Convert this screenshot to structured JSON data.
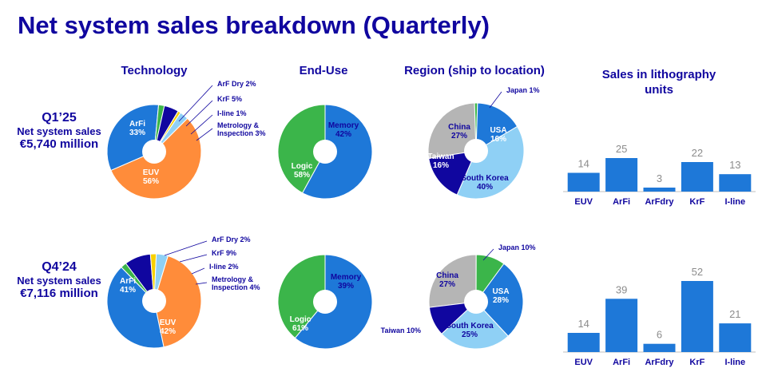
{
  "title": "Net system sales breakdown (Quarterly)",
  "headers": {
    "technology": "Technology",
    "end_use": "End-Use",
    "region": "Region (ship to location)",
    "litho_line1": "Sales in lithography",
    "litho_line2": "units"
  },
  "sections": [
    {
      "quarter": "Q1’25",
      "label": "Net system sales",
      "value": "€5,740 million"
    },
    {
      "quarter": "Q4’24",
      "label": "Net system sales",
      "value": "€7,116 million"
    }
  ],
  "colors": {
    "title": "#10069f",
    "dark_blue": "#10069f",
    "medium_blue": "#1e78d8",
    "light_blue": "#8fd0f5",
    "orange": "#ff8c3a",
    "green": "#3bb54a",
    "grey": "#b5b5b5",
    "yellow": "#f8d000",
    "label_dark": "#10069f"
  },
  "chart_data": [
    {
      "type": "pie",
      "id": "technology-q125",
      "slices": [
        {
          "label": "EUV",
          "value": 56,
          "text": "56%",
          "color": "orange"
        },
        {
          "label": "ArFi",
          "value": 33,
          "text": "33%",
          "color": "medium_blue"
        },
        {
          "label": "ArF Dry",
          "value": 2,
          "text": "2%",
          "color": "green"
        },
        {
          "label": "KrF",
          "value": 5,
          "text": "5%",
          "color": "dark_blue"
        },
        {
          "label": "I-line",
          "value": 1,
          "text": "1%",
          "color": "yellow"
        },
        {
          "label": "Metrology & Inspection",
          "value": 3,
          "text": "3%",
          "color": "light_blue"
        }
      ]
    },
    {
      "type": "pie",
      "id": "enduse-q125",
      "slices": [
        {
          "label": "Logic",
          "value": 58,
          "text": "58%",
          "color": "medium_blue"
        },
        {
          "label": "Memory",
          "value": 42,
          "text": "42%",
          "color": "green"
        }
      ]
    },
    {
      "type": "pie",
      "id": "region-q125",
      "slices": [
        {
          "label": "China",
          "value": 27,
          "text": "27%",
          "color": "grey"
        },
        {
          "label": "Japan",
          "value": 1,
          "text": "1%",
          "color": "green"
        },
        {
          "label": "USA",
          "value": 16,
          "text": "16%",
          "color": "medium_blue"
        },
        {
          "label": "South Korea",
          "value": 40,
          "text": "40%",
          "color": "light_blue"
        },
        {
          "label": "Taiwan",
          "value": 16,
          "text": "16%",
          "color": "dark_blue"
        }
      ]
    },
    {
      "type": "bar",
      "id": "litho-q125",
      "categories": [
        "EUV",
        "ArFi",
        "ArFdry",
        "KrF",
        "I-line"
      ],
      "values": [
        14,
        25,
        3,
        22,
        13
      ]
    },
    {
      "type": "pie",
      "id": "technology-q424",
      "slices": [
        {
          "label": "EUV",
          "value": 42,
          "text": "42%",
          "color": "orange"
        },
        {
          "label": "ArFi",
          "value": 41,
          "text": "41%",
          "color": "medium_blue"
        },
        {
          "label": "ArF Dry",
          "value": 2,
          "text": "2%",
          "color": "green"
        },
        {
          "label": "KrF",
          "value": 9,
          "text": "9%",
          "color": "dark_blue"
        },
        {
          "label": "I-line",
          "value": 2,
          "text": "2%",
          "color": "yellow"
        },
        {
          "label": "Metrology & Inspection",
          "value": 4,
          "text": "4%",
          "color": "light_blue"
        }
      ]
    },
    {
      "type": "pie",
      "id": "enduse-q424",
      "slices": [
        {
          "label": "Logic",
          "value": 61,
          "text": "61%",
          "color": "medium_blue"
        },
        {
          "label": "Memory",
          "value": 39,
          "text": "39%",
          "color": "green"
        }
      ]
    },
    {
      "type": "pie",
      "id": "region-q424",
      "slices": [
        {
          "label": "China",
          "value": 27,
          "text": "27%",
          "color": "grey"
        },
        {
          "label": "Japan",
          "value": 10,
          "text": "10%",
          "color": "green"
        },
        {
          "label": "USA",
          "value": 28,
          "text": "28%",
          "color": "medium_blue"
        },
        {
          "label": "South Korea",
          "value": 25,
          "text": "25%",
          "color": "light_blue"
        },
        {
          "label": "Taiwan",
          "value": 10,
          "text": "10%",
          "color": "dark_blue"
        }
      ]
    },
    {
      "type": "bar",
      "id": "litho-q424",
      "categories": [
        "EUV",
        "ArFi",
        "ArFdry",
        "KrF",
        "I-line"
      ],
      "values": [
        14,
        39,
        6,
        52,
        21
      ]
    }
  ]
}
